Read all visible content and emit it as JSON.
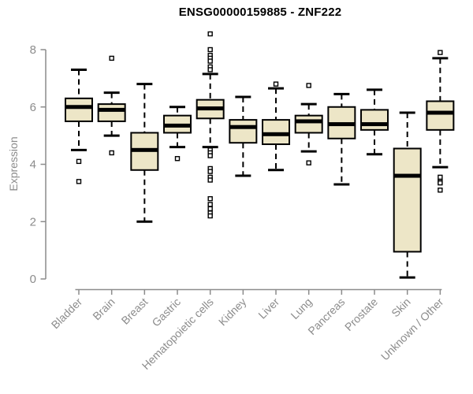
{
  "chart_data": {
    "type": "boxplot",
    "title": "ENSG00000159885 - ZNF222",
    "ylabel": "Expression",
    "xlabel": "",
    "ylim": [
      0,
      8
    ],
    "yticks": [
      0,
      2,
      4,
      6,
      8
    ],
    "grid": false,
    "legend": "none",
    "categories": [
      "Bladder",
      "Brain",
      "Breast",
      "Gastric",
      "Hematopoietic cells",
      "Kidney",
      "Liver",
      "Lung",
      "Pancreas",
      "Prostate",
      "Skin",
      "Unknown / Other"
    ],
    "series": [
      {
        "name": "Bladder",
        "low": 4.5,
        "q1": 5.5,
        "median": 6.0,
        "q3": 6.3,
        "high": 7.3,
        "outliers": [
          4.1,
          3.4
        ]
      },
      {
        "name": "Brain",
        "low": 5.0,
        "q1": 5.5,
        "median": 5.9,
        "q3": 6.1,
        "high": 6.5,
        "outliers": [
          7.7,
          4.4
        ]
      },
      {
        "name": "Breast",
        "low": 2.0,
        "q1": 3.8,
        "median": 4.5,
        "q3": 5.1,
        "high": 6.8,
        "outliers": []
      },
      {
        "name": "Gastric",
        "low": 4.6,
        "q1": 5.1,
        "median": 5.35,
        "q3": 5.7,
        "high": 6.0,
        "outliers": [
          4.2
        ]
      },
      {
        "name": "Hematopoietic cells",
        "low": 4.6,
        "q1": 5.6,
        "median": 5.95,
        "q3": 6.25,
        "high": 7.15,
        "outliers": [
          8.55,
          8.0,
          7.8,
          7.7,
          7.6,
          7.4,
          7.3,
          4.5,
          4.4,
          4.3,
          3.85,
          3.75,
          3.55,
          3.45,
          2.8,
          2.6,
          2.45,
          2.3,
          2.2
        ]
      },
      {
        "name": "Kidney",
        "low": 3.6,
        "q1": 4.75,
        "median": 5.3,
        "q3": 5.55,
        "high": 6.35,
        "outliers": []
      },
      {
        "name": "Liver",
        "low": 3.8,
        "q1": 4.7,
        "median": 5.05,
        "q3": 5.55,
        "high": 6.65,
        "outliers": [
          6.8
        ]
      },
      {
        "name": "Lung",
        "low": 4.45,
        "q1": 5.1,
        "median": 5.5,
        "q3": 5.7,
        "high": 6.1,
        "outliers": [
          6.75,
          4.05
        ]
      },
      {
        "name": "Pancreas",
        "low": 3.3,
        "q1": 4.9,
        "median": 5.4,
        "q3": 6.0,
        "high": 6.45,
        "outliers": []
      },
      {
        "name": "Prostate",
        "low": 4.35,
        "q1": 5.2,
        "median": 5.4,
        "q3": 5.9,
        "high": 6.6,
        "outliers": []
      },
      {
        "name": "Skin",
        "low": 0.05,
        "q1": 0.95,
        "median": 3.6,
        "q3": 4.55,
        "high": 5.8,
        "outliers": []
      },
      {
        "name": "Unknown / Other",
        "low": 3.9,
        "q1": 5.2,
        "median": 5.8,
        "q3": 6.2,
        "high": 7.7,
        "outliers": [
          7.9,
          3.55,
          3.4,
          3.35,
          3.1
        ]
      }
    ],
    "colors": {
      "box_fill": "#EDE6C7",
      "box_stroke": "#000000",
      "median": "#000000",
      "whisker": "#000000",
      "outlier_fill": "#FFFFFF",
      "axis": "#8C8C8C",
      "tick_label": "#8C8C8C",
      "title": "#000000",
      "background": "#FFFFFF"
    }
  }
}
